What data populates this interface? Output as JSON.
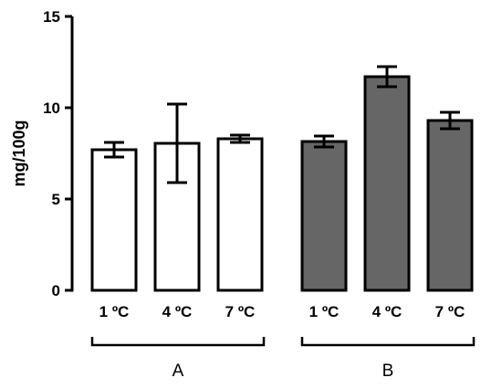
{
  "chart_data": {
    "type": "bar",
    "title": "",
    "ylabel": "mg/100g",
    "xlabel": "",
    "ylim": [
      0,
      15
    ],
    "yticks": [
      "0",
      "5",
      "10",
      "15"
    ],
    "categories": [
      "1 ºC",
      "4 ºC",
      "7 ºC"
    ],
    "groups": [
      {
        "label": "A",
        "fill": "#ffffff",
        "values": [
          7.7,
          8.05,
          8.3
        ],
        "errors": [
          0.4,
          2.15,
          0.2
        ]
      },
      {
        "label": "B",
        "fill": "#666666",
        "values": [
          8.15,
          11.7,
          9.3
        ],
        "errors": [
          0.3,
          0.55,
          0.45
        ]
      }
    ],
    "grid": false,
    "legend": "none"
  }
}
